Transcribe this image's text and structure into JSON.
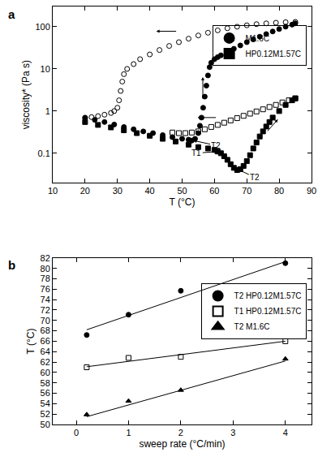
{
  "chart_data": [
    {
      "type": "scatter",
      "title": "a",
      "x_label": "T (°C)",
      "y_label": "viscosity* (Pa s)",
      "log": "y",
      "grid": false,
      "legend": "upper right",
      "xlim": [
        10,
        90
      ],
      "xticks": [
        10,
        20,
        30,
        40,
        50,
        60,
        70,
        80,
        90
      ],
      "ylim": [
        0.02,
        300
      ],
      "yticks": [
        0.1,
        1,
        10,
        100
      ],
      "series": [
        {
          "name": "M1.6C",
          "color": "#000000",
          "marker": "circle",
          "x": [
            20,
            23,
            26,
            29,
            32,
            35,
            38,
            41,
            44,
            47,
            50,
            52,
            53,
            54,
            55,
            55.5,
            56,
            56.5,
            57,
            57.5,
            58,
            58.5,
            59,
            60,
            61,
            62,
            64,
            66,
            68,
            70,
            72,
            74,
            76,
            78,
            80,
            82,
            84,
            85
          ],
          "values": [
            0.7,
            0.62,
            0.55,
            0.48,
            0.42,
            0.37,
            0.33,
            0.3,
            0.27,
            0.24,
            0.22,
            0.21,
            0.2,
            0.22,
            0.3,
            0.45,
            0.7,
            1.2,
            2.2,
            4,
            7,
            11,
            14,
            17,
            19,
            21,
            25,
            30,
            36,
            43,
            50,
            58,
            67,
            77,
            88,
            100,
            112,
            120
          ]
        },
        {
          "name": "M1.6C",
          "color": "#000000",
          "marker": "circle-open",
          "x": [
            85,
            82,
            79,
            76,
            73,
            70,
            67,
            64,
            61,
            58,
            55,
            52,
            49,
            46,
            43,
            40,
            37,
            35,
            33,
            32,
            31.5,
            31,
            30.5,
            30,
            29,
            28,
            26,
            24,
            22,
            20
          ],
          "values": [
            130,
            128,
            124,
            120,
            115,
            108,
            100,
            92,
            82,
            72,
            62,
            52,
            43,
            35,
            28,
            22,
            17,
            13,
            10,
            7.5,
            5,
            3,
            1.8,
            1.2,
            1.0,
            0.9,
            0.82,
            0.76,
            0.72,
            0.68
          ]
        },
        {
          "name": "HP0.12M1.57C",
          "color": "#000000",
          "marker": "square",
          "x": [
            20,
            24,
            28,
            32,
            36,
            40,
            44,
            48,
            52,
            55,
            58,
            60,
            61,
            62,
            63,
            64,
            65,
            66,
            67,
            68,
            69,
            70,
            71,
            72,
            73,
            74,
            75,
            76,
            77,
            78,
            80,
            82,
            84,
            85
          ],
          "values": [
            0.55,
            0.47,
            0.41,
            0.35,
            0.3,
            0.26,
            0.22,
            0.19,
            0.16,
            0.14,
            0.13,
            0.12,
            0.11,
            0.1,
            0.085,
            0.07,
            0.055,
            0.045,
            0.04,
            0.042,
            0.05,
            0.065,
            0.09,
            0.13,
            0.18,
            0.25,
            0.33,
            0.43,
            0.55,
            0.7,
            1.0,
            1.4,
            1.8,
            2.0
          ]
        },
        {
          "name": "HP0.12M1.57C",
          "color": "#000000",
          "marker": "square-open",
          "x": [
            85,
            83,
            81,
            79,
            77,
            75,
            73,
            71,
            69,
            67,
            65,
            63,
            61,
            59,
            57,
            55,
            53,
            51,
            49,
            47
          ],
          "values": [
            2.0,
            1.8,
            1.6,
            1.4,
            1.25,
            1.1,
            0.98,
            0.87,
            0.77,
            0.68,
            0.6,
            0.53,
            0.47,
            0.42,
            0.37,
            0.33,
            0.31,
            0.3,
            0.3,
            0.31
          ]
        }
      ],
      "annotations": [
        {
          "text": "T2",
          "x": 53.5,
          "y": 0.2
        },
        {
          "text": "T1",
          "x": 61,
          "y": 0.11
        },
        {
          "text": "T2",
          "x": 67,
          "y": 0.042
        }
      ]
    },
    {
      "type": "scatter",
      "title": "b",
      "x_label": "sweep rate (°C/min)",
      "y_label": "T (°C)",
      "grid": false,
      "legend": "upper right",
      "xlim": [
        -0.45,
        4.5
      ],
      "xticks": [
        0,
        1,
        2,
        3,
        4
      ],
      "ylim": [
        50,
        82
      ],
      "yticks": [
        50,
        52,
        54,
        56,
        58,
        60,
        62,
        64,
        66,
        68,
        70,
        72,
        74,
        76,
        78,
        80,
        82
      ],
      "series": [
        {
          "name": "T2 HP0.12M1.57C",
          "color": "#000000",
          "marker": "circle",
          "line_style": "solid",
          "x": [
            0.2,
            1,
            2,
            4
          ],
          "values": [
            67.2,
            71.1,
            75.7,
            81
          ],
          "fit": {
            "x": [
              0.2,
              4
            ],
            "values": [
              68.2,
              81.3
            ]
          }
        },
        {
          "name": "T1 HP0.12M1.57C",
          "color": "#000000",
          "marker": "square-open",
          "line_style": "solid",
          "x": [
            0.2,
            1,
            2,
            4
          ],
          "values": [
            61,
            62.8,
            63,
            66
          ],
          "fit": {
            "x": [
              0.2,
              4
            ],
            "values": [
              61.1,
              66
            ]
          }
        },
        {
          "name": "T2 M1.6C",
          "color": "#000000",
          "marker": "triangle-up",
          "line_style": "solid",
          "x": [
            0.2,
            1,
            2,
            4
          ],
          "values": [
            51.9,
            54.5,
            56.6,
            62.6
          ],
          "fit": {
            "x": [
              0.2,
              4
            ],
            "values": [
              51.5,
              62.2
            ]
          }
        }
      ]
    }
  ]
}
